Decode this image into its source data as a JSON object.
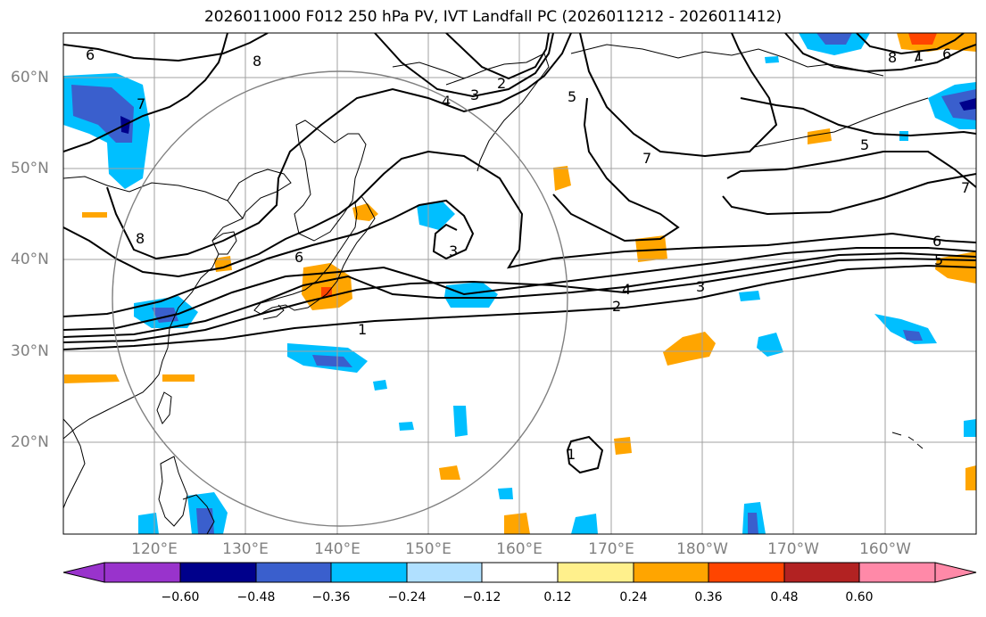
{
  "title": "2026011000 F012 250 hPa PV, IVT Landfall PC (2026011212 - 2026011412)",
  "lat_labels": [
    "60°N",
    "50°N",
    "40°N",
    "30°N",
    "20°N"
  ],
  "lon_labels": [
    "120°E",
    "130°E",
    "140°E",
    "150°E",
    "160°E",
    "170°E",
    "180°W",
    "170°W",
    "160°W"
  ],
  "colorbar": {
    "colors": [
      "#9933cc",
      "#00008b",
      "#3a5fcd",
      "#00bfff",
      "#b0e0ff",
      "#ffffff",
      "#fff08c",
      "#ffa500",
      "#ff4500",
      "#b22222",
      "#ff89a8"
    ],
    "tick_labels": [
      "−0.60",
      "−0.48",
      "−0.36",
      "−0.24",
      "−0.12",
      "0.12",
      "0.24",
      "0.36",
      "0.48",
      "0.60"
    ]
  },
  "contour_labels": [
    "6",
    "8",
    "2",
    "3",
    "4",
    "5",
    "7",
    "8",
    "7",
    "6",
    "5",
    "7",
    "7",
    "8",
    "3",
    "6",
    "1",
    "4",
    "3",
    "2",
    "6",
    "5",
    "1",
    "1"
  ]
}
